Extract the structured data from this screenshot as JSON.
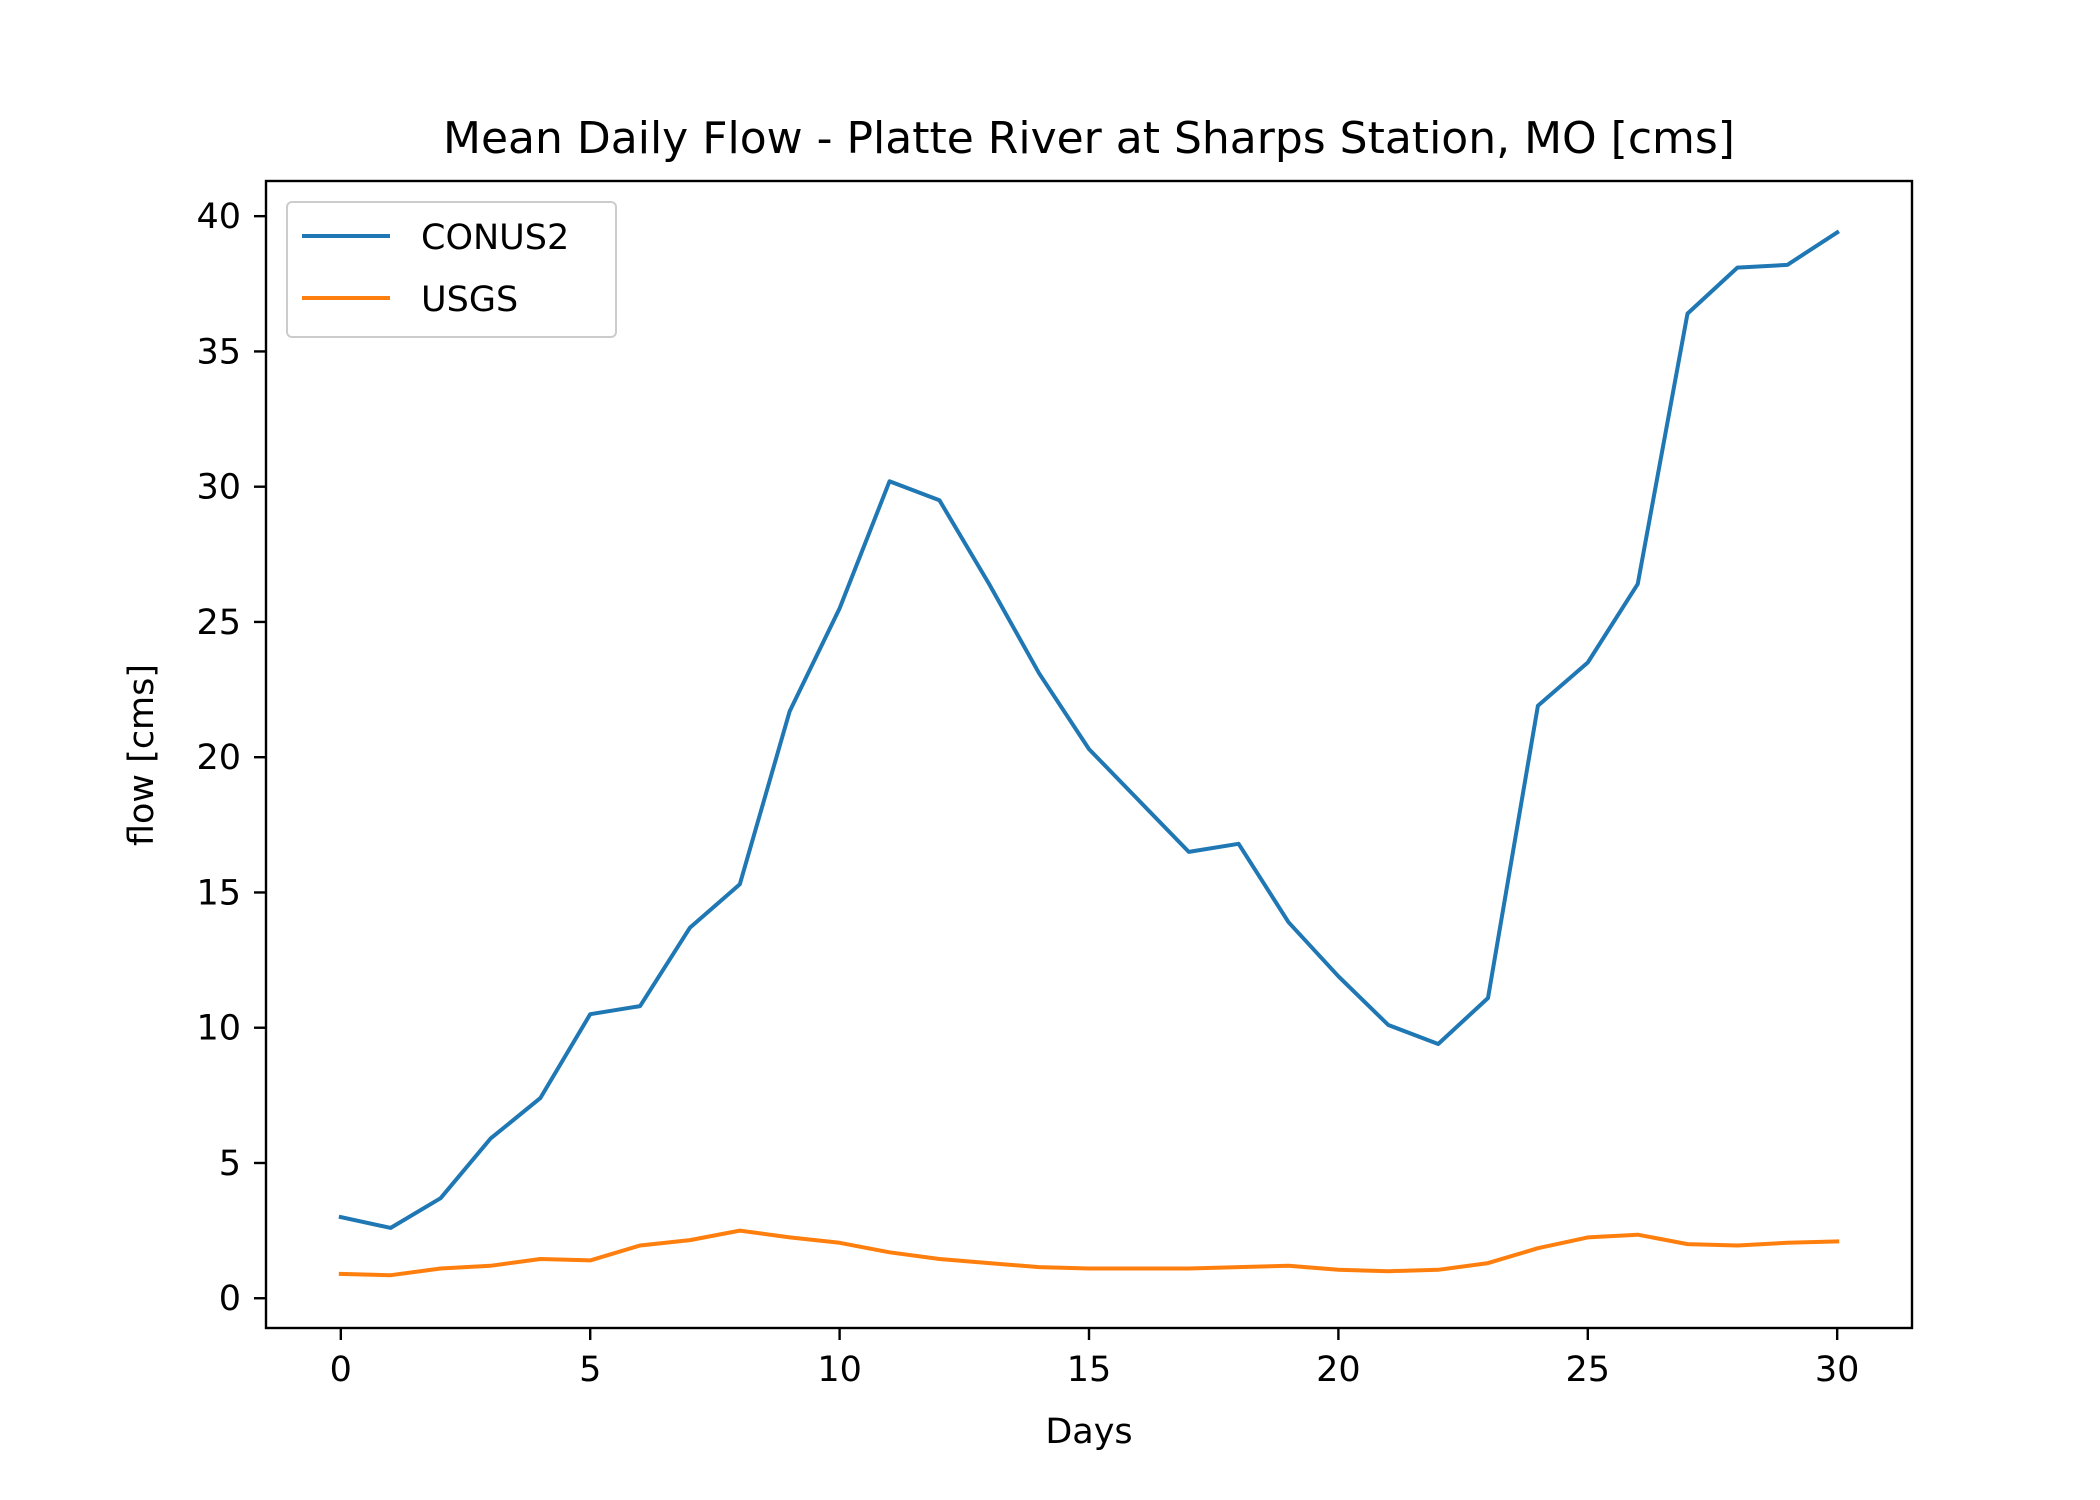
{
  "chart_data": {
    "type": "line",
    "title": "Mean Daily Flow - Platte River at Sharps Station, MO [cms]",
    "xlabel": "Days",
    "ylabel": "flow [cms]",
    "xlim": [
      -1.5,
      31.5
    ],
    "ylim": [
      -1.1,
      41.3
    ],
    "xticks": [
      0,
      5,
      10,
      15,
      20,
      25,
      30
    ],
    "yticks": [
      0,
      5,
      10,
      15,
      20,
      25,
      30,
      35,
      40
    ],
    "grid": false,
    "legend_position": "upper-left",
    "x": [
      0,
      1,
      2,
      3,
      4,
      5,
      6,
      7,
      8,
      9,
      10,
      11,
      12,
      13,
      14,
      15,
      16,
      17,
      18,
      19,
      20,
      21,
      22,
      23,
      24,
      25,
      26,
      27,
      28,
      29,
      30
    ],
    "series": [
      {
        "name": "CONUS2",
        "color": "#1f77b4",
        "values": [
          3.0,
          2.6,
          3.7,
          5.9,
          7.4,
          10.5,
          10.8,
          13.7,
          15.3,
          21.7,
          25.5,
          30.2,
          29.5,
          26.4,
          23.1,
          20.3,
          18.4,
          16.5,
          16.8,
          13.9,
          11.9,
          10.1,
          9.4,
          11.1,
          21.9,
          23.5,
          26.4,
          36.4,
          38.1,
          38.2,
          39.4
        ]
      },
      {
        "name": "USGS",
        "color": "#ff7f0e",
        "values": [
          0.9,
          0.85,
          1.1,
          1.2,
          1.45,
          1.4,
          1.95,
          2.15,
          2.5,
          2.25,
          2.05,
          1.7,
          1.45,
          1.3,
          1.15,
          1.1,
          1.1,
          1.1,
          1.15,
          1.2,
          1.05,
          1.0,
          1.05,
          1.3,
          1.85,
          2.25,
          2.35,
          2.0,
          1.95,
          2.05,
          2.1
        ]
      }
    ]
  }
}
